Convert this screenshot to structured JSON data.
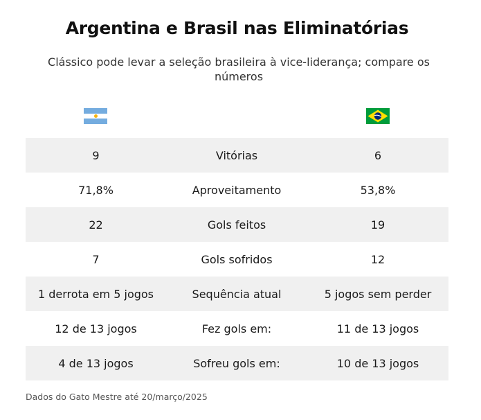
{
  "title": "Argentina e Brasil nas Eliminatórias",
  "subtitle": "Clássico pode levar a seleção brasileira à vice-liderança; compare os números",
  "flags": {
    "left": "argentina-flag",
    "right": "brazil-flag"
  },
  "colors": {
    "row_shaded": "#f0f0f0",
    "argentina_blue": "#74acdf",
    "brazil_green": "#009c3b",
    "brazil_yellow": "#ffdf00",
    "brazil_blue": "#002776"
  },
  "rows": [
    {
      "argentina": "9",
      "stat": "Vitórias",
      "brasil": "6"
    },
    {
      "argentina": "71,8%",
      "stat": "Aproveitamento",
      "brasil": "53,8%"
    },
    {
      "argentina": "22",
      "stat": "Gols feitos",
      "brasil": "19"
    },
    {
      "argentina": "7",
      "stat": "Gols sofridos",
      "brasil": "12"
    },
    {
      "argentina": "1 derrota em 5 jogos",
      "stat": "Sequência atual",
      "brasil": "5 jogos sem perder"
    },
    {
      "argentina": "12 de 13 jogos",
      "stat": "Fez gols em:",
      "brasil": "11 de 13 jogos"
    },
    {
      "argentina": "4 de 13 jogos",
      "stat": "Sofreu gols em:",
      "brasil": "10 de 13 jogos"
    }
  ],
  "source": "Dados do Gato Mestre até 20/março/2025"
}
